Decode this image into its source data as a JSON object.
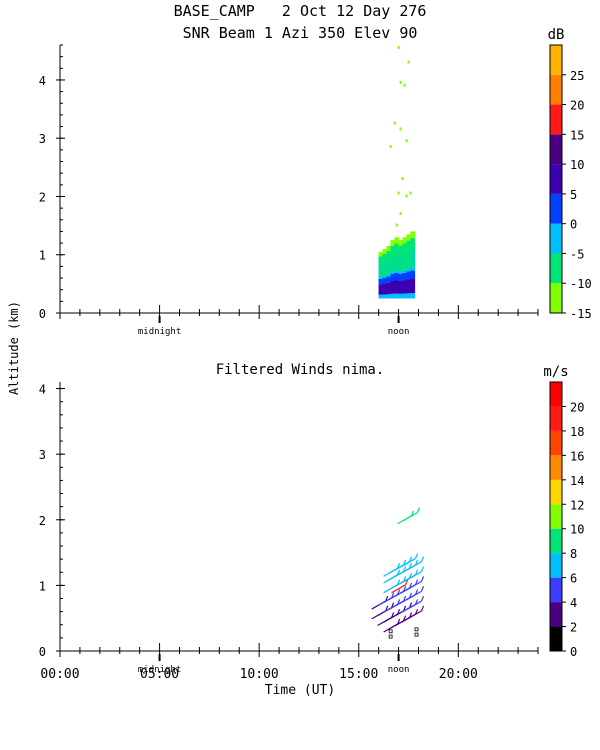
{
  "header": {
    "title_line1": "BASE_CAMP   2 Oct 12 Day 276",
    "title_line2": "SNR Beam 1 Azi 350 Elev 90"
  },
  "shared": {
    "ylabel": "Altitude (km)",
    "xlabel": "Time (UT)",
    "x_ticklabels": [
      "00:00",
      "05:00",
      "10:00",
      "15:00",
      "20:00"
    ],
    "markers": [
      {
        "label": "midnight",
        "hour": 5.0
      },
      {
        "label": "noon",
        "hour": 17.0
      }
    ]
  },
  "chart_data": [
    {
      "type": "heatmap",
      "title": "SNR Beam 1 Azi 350 Elev 90",
      "xlim": [
        0,
        24
      ],
      "ylim": [
        0,
        4.6
      ],
      "yticks": [
        0,
        1,
        2,
        3,
        4
      ],
      "colorbar": {
        "unit": "dB",
        "ticks": [
          -15,
          -10,
          -5,
          0,
          5,
          10,
          15,
          20,
          25
        ],
        "colors": [
          "#7fff00",
          "#00e676",
          "#00bfff",
          "#0040ff",
          "#3c00b0",
          "#4b0082",
          "#ff1a1a",
          "#ff7f00",
          "#ffb300"
        ]
      },
      "x_range": [
        16.0,
        17.9
      ],
      "columns": [
        {
          "t": 16.1,
          "top": 1.05,
          "bottom": 0.25
        },
        {
          "t": 16.3,
          "top": 1.1,
          "bottom": 0.25
        },
        {
          "t": 16.5,
          "top": 1.15,
          "bottom": 0.25
        },
        {
          "t": 16.7,
          "top": 1.25,
          "bottom": 0.25
        },
        {
          "t": 16.9,
          "top": 1.3,
          "bottom": 0.25
        },
        {
          "t": 17.1,
          "top": 1.25,
          "bottom": 0.25
        },
        {
          "t": 17.3,
          "top": 1.3,
          "bottom": 0.25
        },
        {
          "t": 17.5,
          "top": 1.35,
          "bottom": 0.25
        },
        {
          "t": 17.7,
          "top": 1.4,
          "bottom": 0.25
        }
      ],
      "sparse_points": [
        {
          "t": 17.0,
          "alt": 4.55
        },
        {
          "t": 17.5,
          "alt": 4.3
        },
        {
          "t": 17.1,
          "alt": 3.95
        },
        {
          "t": 17.3,
          "alt": 3.9
        },
        {
          "t": 16.8,
          "alt": 3.25
        },
        {
          "t": 17.1,
          "alt": 3.15
        },
        {
          "t": 16.6,
          "alt": 2.85
        },
        {
          "t": 17.4,
          "alt": 2.95
        },
        {
          "t": 17.2,
          "alt": 2.3
        },
        {
          "t": 17.0,
          "alt": 2.05
        },
        {
          "t": 17.6,
          "alt": 2.05
        },
        {
          "t": 17.4,
          "alt": 2.0
        },
        {
          "t": 17.1,
          "alt": 1.7
        },
        {
          "t": 16.9,
          "alt": 1.5
        }
      ]
    },
    {
      "type": "scatter",
      "title": "Filtered Winds nima.",
      "xlim": [
        0,
        24
      ],
      "ylim": [
        0,
        4.1
      ],
      "yticks": [
        0,
        1,
        2,
        3,
        4
      ],
      "colorbar": {
        "unit": "m/s",
        "ticks": [
          0,
          2,
          4,
          6,
          8,
          10,
          12,
          14,
          16,
          18,
          20
        ],
        "colors": [
          "#000000",
          "#4b0082",
          "#3c3cff",
          "#00bfff",
          "#00e676",
          "#7fff00",
          "#ffd700",
          "#ff8c00",
          "#ff4500",
          "#ff1a1a",
          "#ff0000"
        ]
      },
      "barbs": [
        {
          "t": 16.0,
          "alt": 0.55,
          "speed": 3
        },
        {
          "t": 16.0,
          "alt": 0.7,
          "speed": 3
        },
        {
          "t": 16.3,
          "alt": 0.45,
          "speed": 3
        },
        {
          "t": 16.3,
          "alt": 0.6,
          "speed": 3
        },
        {
          "t": 16.3,
          "alt": 0.75,
          "speed": 4
        },
        {
          "t": 16.6,
          "alt": 0.35,
          "speed": 2
        },
        {
          "t": 16.6,
          "alt": 0.5,
          "speed": 3
        },
        {
          "t": 16.6,
          "alt": 0.65,
          "speed": 4
        },
        {
          "t": 16.6,
          "alt": 0.8,
          "speed": 5
        },
        {
          "t": 16.6,
          "alt": 0.95,
          "speed": 6
        },
        {
          "t": 16.6,
          "alt": 1.1,
          "speed": 6
        },
        {
          "t": 16.6,
          "alt": 1.2,
          "speed": 7
        },
        {
          "t": 16.9,
          "alt": 0.4,
          "speed": 3
        },
        {
          "t": 16.9,
          "alt": 0.55,
          "speed": 3
        },
        {
          "t": 16.9,
          "alt": 0.7,
          "speed": 4
        },
        {
          "t": 16.9,
          "alt": 0.85,
          "speed": 5
        },
        {
          "t": 16.9,
          "alt": 1.0,
          "speed": 6
        },
        {
          "t": 16.9,
          "alt": 1.15,
          "speed": 6
        },
        {
          "t": 16.9,
          "alt": 1.25,
          "speed": 7
        },
        {
          "t": 17.2,
          "alt": 0.45,
          "speed": 3
        },
        {
          "t": 17.2,
          "alt": 0.6,
          "speed": 3
        },
        {
          "t": 17.2,
          "alt": 0.75,
          "speed": 4
        },
        {
          "t": 17.2,
          "alt": 0.9,
          "speed": 5
        },
        {
          "t": 17.2,
          "alt": 1.05,
          "speed": 6
        },
        {
          "t": 17.2,
          "alt": 1.2,
          "speed": 6
        },
        {
          "t": 17.2,
          "alt": 1.3,
          "speed": 7
        },
        {
          "t": 17.5,
          "alt": 0.5,
          "speed": 3
        },
        {
          "t": 17.5,
          "alt": 0.65,
          "speed": 4
        },
        {
          "t": 17.5,
          "alt": 0.8,
          "speed": 5
        },
        {
          "t": 17.5,
          "alt": 0.95,
          "speed": 5
        },
        {
          "t": 17.5,
          "alt": 1.1,
          "speed": 6
        },
        {
          "t": 17.5,
          "alt": 1.25,
          "speed": 6
        },
        {
          "t": 17.5,
          "alt": 1.35,
          "speed": 7
        },
        {
          "t": 17.8,
          "alt": 0.55,
          "speed": 3
        },
        {
          "t": 17.8,
          "alt": 0.7,
          "speed": 4
        },
        {
          "t": 17.8,
          "alt": 0.85,
          "speed": 5
        },
        {
          "t": 17.8,
          "alt": 1.0,
          "speed": 5
        },
        {
          "t": 17.8,
          "alt": 1.15,
          "speed": 6
        },
        {
          "t": 17.8,
          "alt": 1.3,
          "speed": 6
        },
        {
          "t": 17.3,
          "alt": 2.0,
          "speed": 8
        },
        {
          "t": 17.6,
          "alt": 2.05,
          "speed": 9
        },
        {
          "t": 17.0,
          "alt": 0.95,
          "speed": 18
        }
      ]
    }
  ]
}
